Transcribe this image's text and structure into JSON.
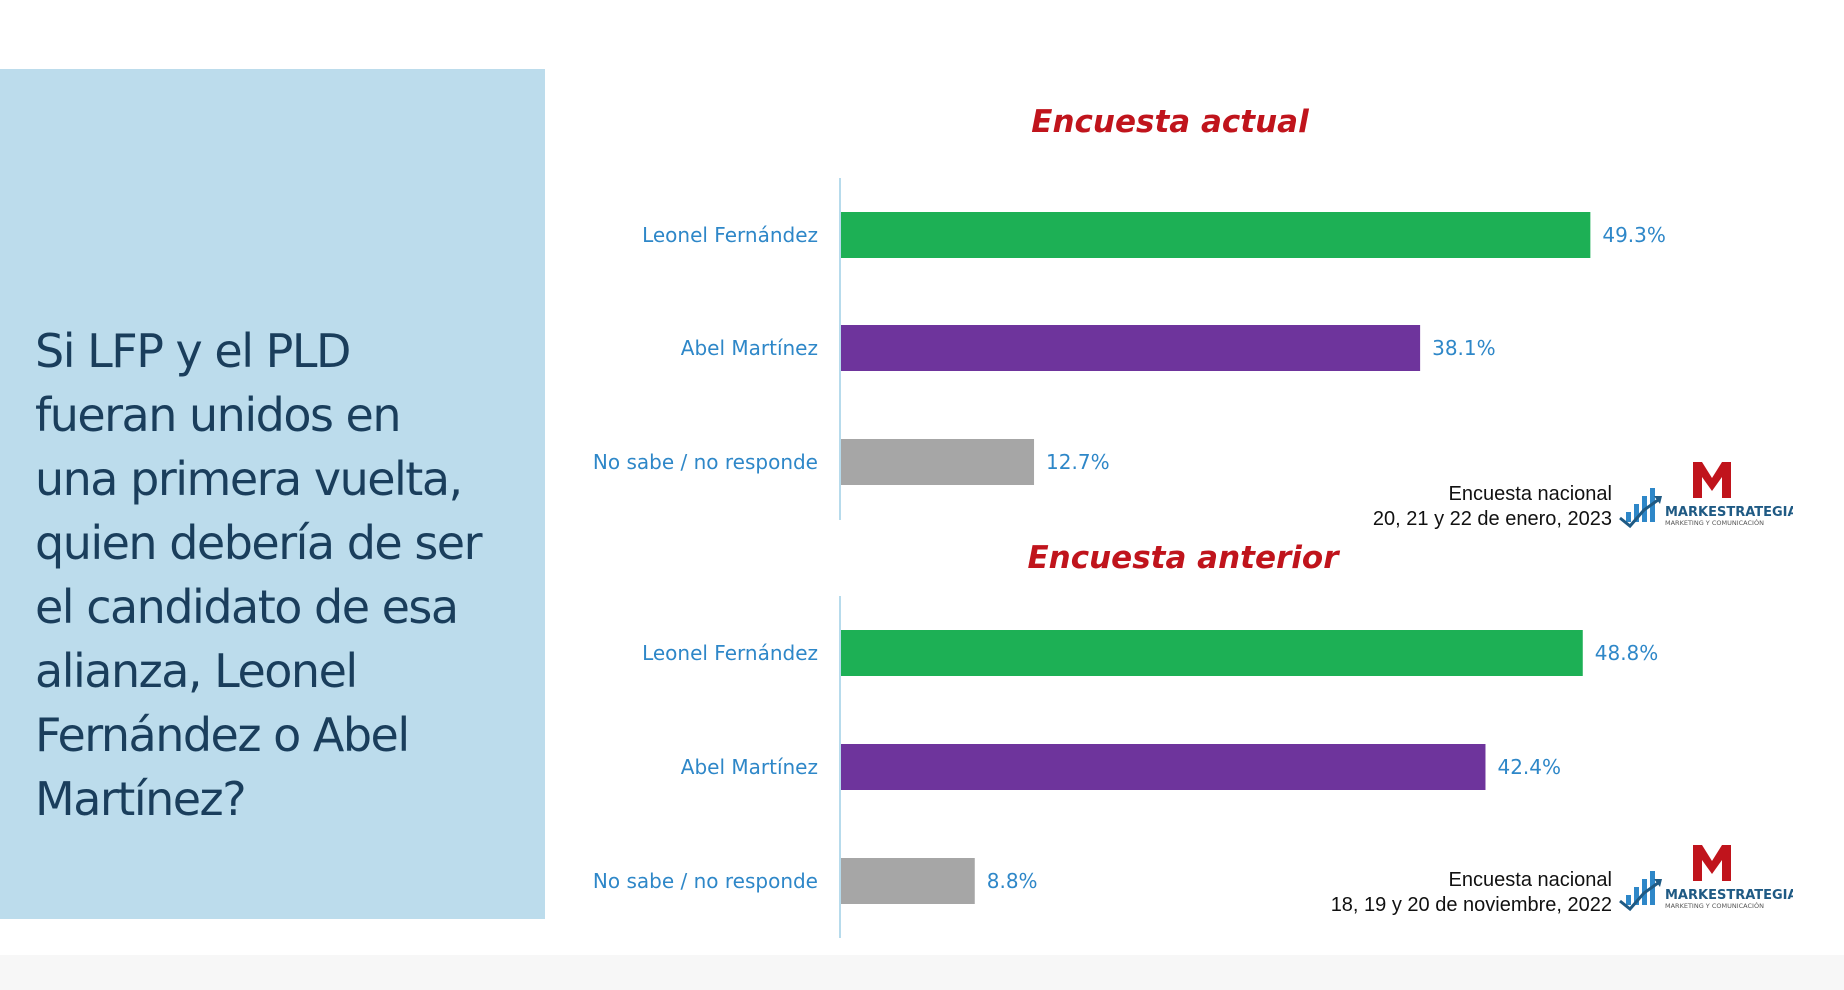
{
  "question": "Si LFP y el PLD\nfueran unidos en\nuna primera vuelta,\nquien debería de ser\nel candidato de esa\nalianza, Leonel\nFernández o Abel\nMartínez?",
  "colors": {
    "panel_background": "#bcdcec",
    "question_text": "#1a3e5c",
    "title": "#c0141c",
    "label_text": "#2e87c8",
    "leonel": "#1db055",
    "abel": "#6e349c",
    "no_sabe": "#a6a6a6",
    "axis": "#9fcfe6"
  },
  "chart_data": [
    {
      "type": "bar",
      "orientation": "horizontal",
      "title": "Encuesta actual",
      "categories": [
        "Leonel Fernández",
        "Abel Martínez",
        "No sabe / no responde"
      ],
      "values": [
        49.3,
        38.1,
        12.7
      ],
      "value_labels": [
        "49.3%",
        "38.1%",
        "12.7%"
      ],
      "bar_colors": [
        "#1db055",
        "#6e349c",
        "#a6a6a6"
      ],
      "xlim": [
        0,
        50
      ],
      "unit": "%",
      "grid": false,
      "legend": "none",
      "source": {
        "line1": "Encuesta nacional",
        "line2": "20, 21 y 22 de enero, 2023"
      }
    },
    {
      "type": "bar",
      "orientation": "horizontal",
      "title": "Encuesta anterior",
      "categories": [
        "Leonel Fernández",
        "Abel Martínez",
        "No sabe / no responde"
      ],
      "values": [
        48.8,
        42.4,
        8.8
      ],
      "value_labels": [
        "48.8%",
        "42.4%",
        "8.8%"
      ],
      "bar_colors": [
        "#1db055",
        "#6e349c",
        "#a6a6a6"
      ],
      "xlim": [
        0,
        50
      ],
      "unit": "%",
      "grid": false,
      "legend": "none",
      "source": {
        "line1": "Encuesta nacional",
        "line2": "18, 19 y 20 de noviembre, 2022"
      }
    }
  ],
  "logo": {
    "icon": "markestrategia-logo",
    "name": "MARKESTRATEGIA",
    "tagline": "MARKETING Y COMUNICACIÓN"
  }
}
